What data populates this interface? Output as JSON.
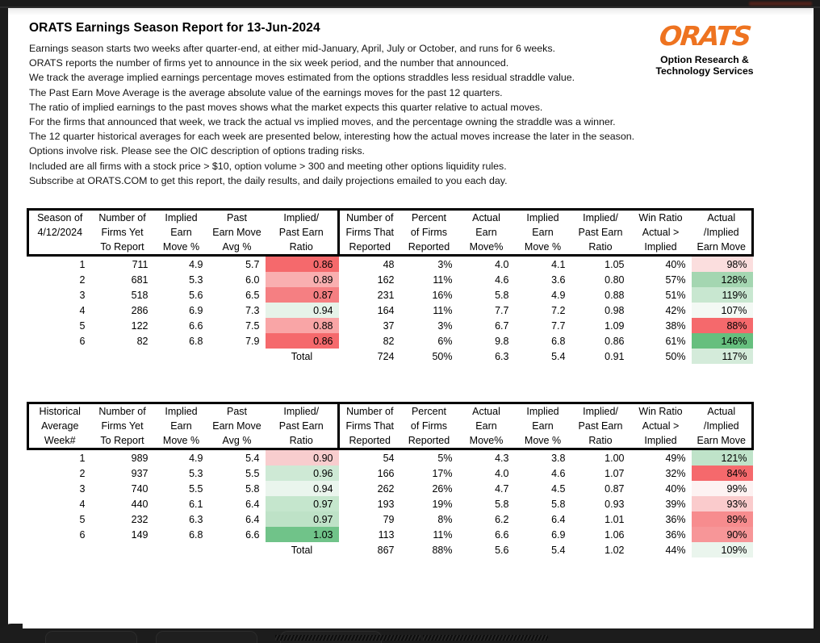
{
  "report": {
    "title": "ORATS Earnings Season Report for 13-Jun-2024",
    "logo": {
      "word": "ORATS",
      "tagline_line1": "Option Research &",
      "tagline_line2": "Technology Services",
      "orange": "#EE7320"
    }
  },
  "intro_lines": [
    "Earnings season starts two weeks after quarter-end, at either mid-January, April, July or October, and runs for 6 weeks.",
    "ORATS reports the number of firms yet to announce in the six week period, and the number that announced.",
    "We track the average implied earnings percentage moves estimated from the options straddles less residual straddle value.",
    "The Past Earn Move Average is the average absolute value of the earnings moves for the past 12 quarters.",
    "The ratio of implied earnings to the past moves shows what the market expects this quarter relative to actual moves.",
    "For the firms that announced that week, we track the actual vs implied moves, and the percentage owning the straddle was a winner.",
    "The 12 quarter historical averages for each week are presented below, interesting how the actual moves increase the later in the season.",
    "Options involve risk. Please see the OIC description of options trading risks.",
    "Included are all firms with a stock price > $10, option volume > 300 and meeting other options liquidity rules.",
    "Subscribe at ORATS.COM to get this report, the daily results, and daily projections emailed to you each day."
  ],
  "tables": [
    {
      "name": "current-season",
      "columns": [
        [
          "Season of",
          "4/12/2024",
          ""
        ],
        [
          "Number of",
          "Firms Yet",
          "To Report"
        ],
        [
          "Implied",
          "Earn",
          "Move %"
        ],
        [
          "Past",
          "Earn Move",
          "Avg %"
        ],
        [
          "Implied/",
          "Past Earn",
          "Ratio"
        ],
        [
          "Number of",
          "Firms That",
          "Reported"
        ],
        [
          "Percent",
          "of Firms",
          "Reported"
        ],
        [
          "Actual",
          "Earn",
          "Move%"
        ],
        [
          "Implied",
          "Earn",
          "Move %"
        ],
        [
          "Implied/",
          "Past Earn",
          "Ratio"
        ],
        [
          "Win Ratio",
          "Actual >",
          "Implied"
        ],
        [
          "Actual",
          "/Implied",
          "Earn Move"
        ]
      ],
      "rows": [
        {
          "cells": [
            "1",
            "711",
            "4.9",
            "5.7",
            "0.86",
            "48",
            "3%",
            "4.0",
            "4.1",
            "1.05",
            "40%",
            "98%"
          ],
          "bg": {
            "4": "#F5696C",
            "11": "#FBDEDE"
          }
        },
        {
          "cells": [
            "2",
            "681",
            "5.3",
            "6.0",
            "0.89",
            "162",
            "11%",
            "4.6",
            "3.6",
            "0.80",
            "57%",
            "128%"
          ],
          "bg": {
            "4": "#F9AFB0",
            "11": "#A4D6B1"
          }
        },
        {
          "cells": [
            "3",
            "518",
            "5.6",
            "6.5",
            "0.87",
            "231",
            "16%",
            "5.8",
            "4.9",
            "0.88",
            "51%",
            "119%"
          ],
          "bg": {
            "4": "#F57F82",
            "11": "#C8E7D0"
          }
        },
        {
          "cells": [
            "4",
            "286",
            "6.9",
            "7.3",
            "0.94",
            "164",
            "11%",
            "7.7",
            "7.2",
            "0.98",
            "42%",
            "107%"
          ],
          "bg": {
            "4": "#E6F3E9",
            "11": "#F3F9F4"
          }
        },
        {
          "cells": [
            "5",
            "122",
            "6.6",
            "7.5",
            "0.88",
            "37",
            "3%",
            "6.7",
            "7.7",
            "1.09",
            "38%",
            "88%"
          ],
          "bg": {
            "4": "#F9A5A6",
            "11": "#F5696C"
          }
        },
        {
          "cells": [
            "6",
            "82",
            "6.8",
            "7.9",
            "0.86",
            "82",
            "6%",
            "9.8",
            "6.8",
            "0.86",
            "61%",
            "146%"
          ],
          "bg": {
            "4": "#F5696C",
            "11": "#66BF7E"
          }
        },
        {
          "total": true,
          "cells": [
            "",
            "",
            "",
            "",
            "Total",
            "724",
            "50%",
            "6.3",
            "5.4",
            "0.91",
            "50%",
            "117%"
          ],
          "bg": {
            "11": "#D4EBDA"
          }
        }
      ]
    },
    {
      "name": "historical-average",
      "columns": [
        [
          "Historical",
          "Average",
          "Week#"
        ],
        [
          "Number of",
          "Firms Yet",
          "To Report"
        ],
        [
          "Implied",
          "Earn",
          "Move %"
        ],
        [
          "Past",
          "Earn Move",
          "Avg %"
        ],
        [
          "Implied/",
          "Past Earn",
          "Ratio"
        ],
        [
          "Number of",
          "Firms That",
          "Reported"
        ],
        [
          "Percent",
          "of Firms",
          "Reported"
        ],
        [
          "Actual",
          "Earn",
          "Move%"
        ],
        [
          "Implied",
          "Earn",
          "Move %"
        ],
        [
          "Implied/",
          "Past Earn",
          "Ratio"
        ],
        [
          "Win Ratio",
          "Actual >",
          "Implied"
        ],
        [
          "Actual",
          "/Implied",
          "Earn Move"
        ]
      ],
      "rows": [
        {
          "cells": [
            "1",
            "989",
            "4.9",
            "5.4",
            "0.90",
            "54",
            "5%",
            "4.3",
            "3.8",
            "1.00",
            "49%",
            "121%"
          ],
          "bg": {
            "4": "#F8CDCE",
            "11": "#BFE3C9"
          }
        },
        {
          "cells": [
            "2",
            "937",
            "5.3",
            "5.5",
            "0.96",
            "166",
            "17%",
            "4.0",
            "4.6",
            "1.07",
            "32%",
            "84%"
          ],
          "bg": {
            "4": "#CEE9D5",
            "11": "#F5696C"
          }
        },
        {
          "cells": [
            "3",
            "740",
            "5.5",
            "5.8",
            "0.94",
            "262",
            "26%",
            "4.7",
            "4.5",
            "0.87",
            "40%",
            "99%"
          ],
          "bg": {
            "4": "#EAF5ED",
            "11": "#FDF2F2"
          }
        },
        {
          "cells": [
            "4",
            "440",
            "6.1",
            "6.4",
            "0.97",
            "193",
            "19%",
            "5.8",
            "5.8",
            "0.93",
            "39%",
            "93%"
          ],
          "bg": {
            "4": "#C5E6CD",
            "11": "#FACBCC"
          }
        },
        {
          "cells": [
            "5",
            "232",
            "6.3",
            "6.4",
            "0.97",
            "79",
            "8%",
            "6.2",
            "6.4",
            "1.01",
            "36%",
            "89%"
          ],
          "bg": {
            "4": "#BEE2C7",
            "11": "#F78C8E"
          }
        },
        {
          "cells": [
            "6",
            "149",
            "6.8",
            "6.6",
            "1.03",
            "113",
            "11%",
            "6.6",
            "6.9",
            "1.06",
            "36%",
            "90%"
          ],
          "bg": {
            "4": "#70C389",
            "11": "#F79698"
          }
        },
        {
          "total": true,
          "cells": [
            "",
            "",
            "",
            "",
            "Total",
            "867",
            "88%",
            "5.6",
            "5.4",
            "1.02",
            "44%",
            "109%"
          ],
          "bg": {
            "11": "#EAF5ED"
          }
        }
      ]
    }
  ]
}
